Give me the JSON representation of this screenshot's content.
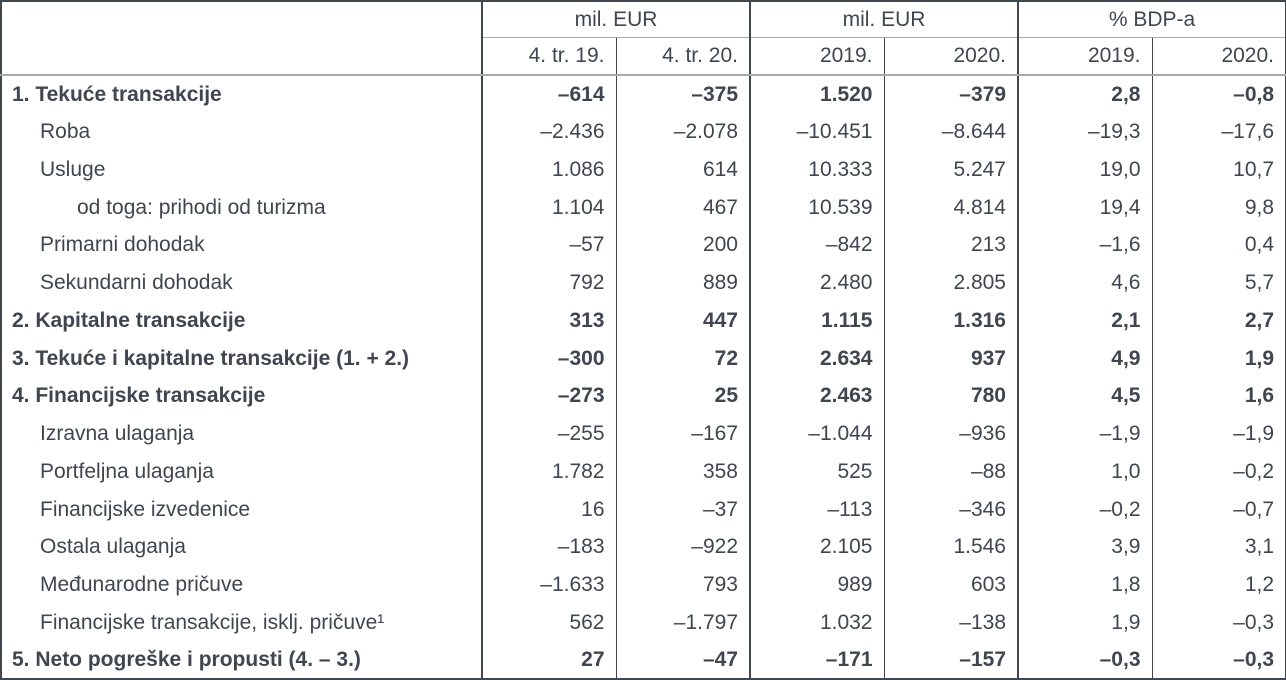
{
  "table": {
    "header": {
      "groups": [
        {
          "label": "mil. EUR"
        },
        {
          "label": "mil. EUR"
        },
        {
          "label": "% BDP-a"
        }
      ],
      "columns": [
        "4. tr. 19.",
        "4. tr. 20.",
        "2019.",
        "2020.",
        "2019.",
        "2020."
      ]
    },
    "rows": [
      {
        "label": "1. Tekuće transakcije",
        "indent": 0,
        "bold": true,
        "values": [
          "–614",
          "–375",
          "1.520",
          "–379",
          "2,8",
          "–0,8"
        ]
      },
      {
        "label": "Roba",
        "indent": 1,
        "bold": false,
        "values": [
          "–2.436",
          "–2.078",
          "–10.451",
          "–8.644",
          "–19,3",
          "–17,6"
        ]
      },
      {
        "label": "Usluge",
        "indent": 1,
        "bold": false,
        "values": [
          "1.086",
          "614",
          "10.333",
          "5.247",
          "19,0",
          "10,7"
        ]
      },
      {
        "label": "od toga: prihodi od turizma",
        "indent": 2,
        "bold": false,
        "values": [
          "1.104",
          "467",
          "10.539",
          "4.814",
          "19,4",
          "9,8"
        ]
      },
      {
        "label": "Primarni dohodak",
        "indent": 1,
        "bold": false,
        "values": [
          "–57",
          "200",
          "–842",
          "213",
          "–1,6",
          "0,4"
        ]
      },
      {
        "label": "Sekundarni dohodak",
        "indent": 1,
        "bold": false,
        "values": [
          "792",
          "889",
          "2.480",
          "2.805",
          "4,6",
          "5,7"
        ]
      },
      {
        "label": "2. Kapitalne transakcije",
        "indent": 0,
        "bold": true,
        "values": [
          "313",
          "447",
          "1.115",
          "1.316",
          "2,1",
          "2,7"
        ]
      },
      {
        "label": "3. Tekuće i kapitalne transakcije (1. + 2.)",
        "indent": 0,
        "bold": true,
        "values": [
          "–300",
          "72",
          "2.634",
          "937",
          "4,9",
          "1,9"
        ]
      },
      {
        "label": "4. Financijske transakcije",
        "indent": 0,
        "bold": true,
        "values": [
          "–273",
          "25",
          "2.463",
          "780",
          "4,5",
          "1,6"
        ]
      },
      {
        "label": "Izravna ulaganja",
        "indent": 1,
        "bold": false,
        "values": [
          "–255",
          "–167",
          "–1.044",
          "–936",
          "–1,9",
          "–1,9"
        ]
      },
      {
        "label": "Portfeljna ulaganja",
        "indent": 1,
        "bold": false,
        "values": [
          "1.782",
          "358",
          "525",
          "–88",
          "1,0",
          "–0,2"
        ]
      },
      {
        "label": "Financijske izvedenice",
        "indent": 1,
        "bold": false,
        "values": [
          "16",
          "–37",
          "–113",
          "–346",
          "–0,2",
          "–0,7"
        ]
      },
      {
        "label": "Ostala ulaganja",
        "indent": 1,
        "bold": false,
        "values": [
          "–183",
          "–922",
          "2.105",
          "1.546",
          "3,9",
          "3,1"
        ]
      },
      {
        "label": "Međunarodne pričuve",
        "indent": 1,
        "bold": false,
        "values": [
          "–1.633",
          "793",
          "989",
          "603",
          "1,8",
          "1,2"
        ]
      },
      {
        "label": "Financijske transakcije, isklj. pričuve¹",
        "indent": 1,
        "bold": false,
        "values": [
          "562",
          "–1.797",
          "1.032",
          "–138",
          "1,9",
          "–0,3"
        ]
      },
      {
        "label": "5. Neto pogreške i propusti (4. – 3.)",
        "indent": 0,
        "bold": true,
        "values": [
          "27",
          "–47",
          "–171",
          "–157",
          "–0,3",
          "–0,3"
        ]
      }
    ]
  },
  "colors": {
    "text": "#3f4650",
    "grid_dark": "#3f4650",
    "grid_light": "#a9a9a9",
    "background": "#ffffff"
  }
}
